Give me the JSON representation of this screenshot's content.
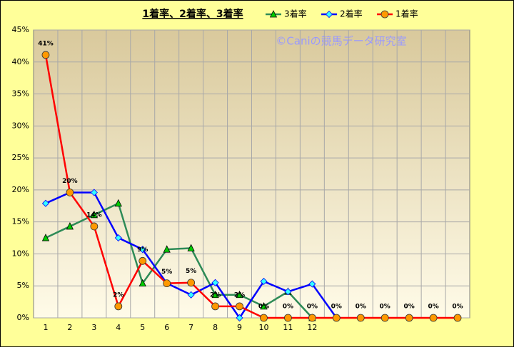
{
  "chart_data": {
    "type": "line",
    "title": "1着率、2着率、3着率",
    "annotation": "©Caniの競馬データ研究室",
    "categories": [
      "1",
      "2",
      "3",
      "4",
      "5",
      "6",
      "7",
      "8",
      "9",
      "10",
      "11",
      "12",
      null,
      null,
      null,
      null,
      null,
      null
    ],
    "series": [
      {
        "name": "3着率",
        "color": "#2e8b57",
        "marker": "triangle",
        "marker_color": "#00cc00",
        "values": [
          12.5,
          14.3,
          16.1,
          17.9,
          5.4,
          10.7,
          10.9,
          3.6,
          3.6,
          1.8,
          4.1,
          0,
          null,
          null,
          null,
          null,
          null,
          null
        ]
      },
      {
        "name": "2着率",
        "color": "#0000ff",
        "marker": "diamond",
        "marker_color": "#33ffff",
        "values": [
          17.9,
          19.6,
          19.6,
          12.5,
          10.7,
          5.4,
          3.6,
          5.5,
          0,
          5.7,
          4.1,
          5.3,
          0,
          null,
          null,
          null,
          null,
          null
        ]
      },
      {
        "name": "1着率",
        "color": "#ff0000",
        "marker": "circle",
        "marker_color": "#ff9900",
        "values": [
          41.1,
          19.6,
          14.3,
          1.8,
          8.9,
          5.4,
          5.5,
          1.8,
          1.8,
          0,
          0,
          0,
          0,
          0,
          0,
          0,
          0,
          0
        ],
        "value_labels": [
          "41%",
          "20%",
          "14%",
          "2%",
          "9%",
          "5%",
          "5%",
          "2%",
          "2%",
          "0%",
          "0%",
          "0%",
          "0%",
          "0%",
          "0%",
          "0%",
          "0%",
          "0%"
        ]
      }
    ],
    "ylim": [
      0,
      45
    ],
    "yticks": [
      {
        "value": 0,
        "label": "0%"
      },
      {
        "value": 5,
        "label": "5%"
      },
      {
        "value": 10,
        "label": "10%"
      },
      {
        "value": 15,
        "label": "15%"
      },
      {
        "value": 20,
        "label": "20%"
      },
      {
        "value": 25,
        "label": "25%"
      },
      {
        "value": 30,
        "label": "30%"
      },
      {
        "value": 35,
        "label": "35%"
      },
      {
        "value": 40,
        "label": "40%"
      },
      {
        "value": 45,
        "label": "45%"
      }
    ],
    "grid": true
  }
}
